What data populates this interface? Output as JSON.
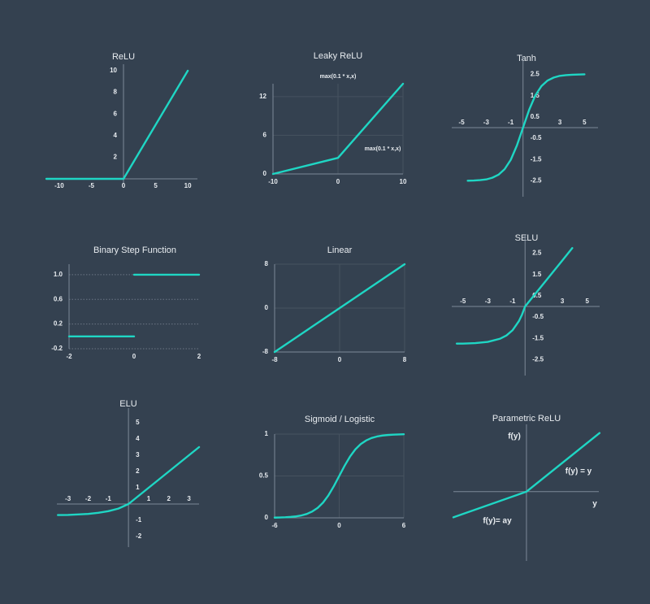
{
  "chart_data": [
    {
      "type": "line",
      "title": "ReLU",
      "color": "#1fd6c4",
      "x": [
        -12,
        0,
        10
      ],
      "values": [
        0,
        0,
        10
      ],
      "xlim": [
        -11.5,
        11.5
      ],
      "ylim": [
        0,
        10
      ],
      "xticks": [
        -10,
        -5,
        0,
        5,
        10
      ],
      "yticks": [
        2,
        4,
        6,
        8,
        10
      ],
      "grid": false
    },
    {
      "type": "line",
      "title": "Leaky ReLU",
      "color": "#1fd6c4",
      "x": [
        -10,
        0,
        10
      ],
      "values": [
        0,
        2.5,
        14
      ],
      "xlim": [
        -10,
        10
      ],
      "ylim": [
        0,
        14
      ],
      "xticks": [
        -10,
        0,
        10
      ],
      "yticks": [
        0,
        6,
        12
      ],
      "grid": true,
      "annotations": [
        "max(0.1 * x,x)",
        "max(0.1 * x,x)"
      ]
    },
    {
      "type": "line",
      "title": "Tanh",
      "color": "#1fd6c4",
      "x": [
        -4.5,
        -4,
        -3.5,
        -3,
        -2.5,
        -2,
        -1.5,
        -1,
        -0.5,
        0,
        0.5,
        1,
        1.5,
        2,
        2.5,
        3,
        3.5,
        4,
        4.5,
        5
      ],
      "values": [
        -2.49,
        -2.48,
        -2.46,
        -2.43,
        -2.35,
        -2.21,
        -1.95,
        -1.51,
        -0.84,
        0,
        0.84,
        1.51,
        1.95,
        2.21,
        2.35,
        2.43,
        2.46,
        2.48,
        2.49,
        2.5
      ],
      "xlim": [
        -5.8,
        6.1
      ],
      "ylim": [
        -3.05,
        3.05
      ],
      "xticks": [
        -5,
        -3,
        -1,
        3,
        5
      ],
      "yticks": [
        2.5,
        1.5,
        0.5,
        -0.5,
        -1.5,
        -2.5
      ],
      "grid": false
    },
    {
      "type": "line",
      "title": "Binary Step Function",
      "color": "#1fd6c4",
      "x": [
        -2,
        0,
        0,
        0,
        2
      ],
      "values": [
        0,
        0,
        null,
        1,
        1
      ],
      "xlim": [
        -2,
        2
      ],
      "ylim": [
        -0.2,
        1.17
      ],
      "xticks": [
        -2,
        0,
        2
      ],
      "yticks": [
        {
          "value": 1,
          "label": "1.0"
        },
        0.6,
        0.2,
        -0.2
      ],
      "grid": "dotted"
    },
    {
      "type": "line",
      "title": "Linear",
      "color": "#1fd6c4",
      "x": [
        -8,
        8
      ],
      "values": [
        -8,
        8
      ],
      "xlim": [
        -8,
        8
      ],
      "ylim": [
        -8,
        8
      ],
      "xticks": [
        -8,
        0,
        8
      ],
      "yticks": [
        -8,
        0,
        8
      ],
      "grid": true
    },
    {
      "type": "line",
      "title": "SELU",
      "color": "#1fd6c4",
      "x": [
        -5.5,
        -5,
        -4,
        -3,
        -2,
        -1.5,
        -1,
        -0.5,
        -0.25,
        0,
        1,
        2,
        3,
        3.8
      ],
      "values": [
        -1.74,
        -1.74,
        -1.72,
        -1.66,
        -1.51,
        -1.36,
        -1.11,
        -0.69,
        -0.39,
        0,
        0.72,
        1.44,
        2.16,
        2.74
      ],
      "xlim": [
        -5.9,
        6
      ],
      "ylim": [
        -3.05,
        3.05
      ],
      "xticks": [
        -5,
        -3,
        -1,
        3,
        5
      ],
      "yticks": [
        2.5,
        1.5,
        0.5,
        -0.5,
        -1.5,
        -2.5
      ],
      "grid": false
    },
    {
      "type": "line",
      "title": "ELU",
      "color": "#1fd6c4",
      "x": [
        -3.5,
        -3,
        -2,
        -1.5,
        -1,
        -0.5,
        0,
        1,
        2,
        3,
        3.5
      ],
      "values": [
        -0.68,
        -0.67,
        -0.61,
        -0.54,
        -0.44,
        -0.28,
        0,
        1,
        2,
        3,
        3.5
      ],
      "xlim": [
        -3.55,
        3.5
      ],
      "ylim": [
        -2.4,
        5.5
      ],
      "xticks": [
        -3,
        -2,
        -1,
        1,
        2,
        3
      ],
      "yticks": [
        5,
        4,
        3,
        2,
        1,
        -1,
        -2
      ],
      "grid": false
    },
    {
      "type": "line",
      "title": "Sigmoid / Logistic",
      "color": "#1fd6c4",
      "x": [
        -6,
        -5.5,
        -5,
        -4.5,
        -4,
        -3.5,
        -3,
        -2.5,
        -2,
        -1.5,
        -1,
        -0.5,
        0,
        0.5,
        1,
        1.5,
        2,
        2.5,
        3,
        3.5,
        4,
        4.5,
        5,
        5.5,
        6
      ],
      "values": [
        0.0025,
        0.0041,
        0.0067,
        0.011,
        0.018,
        0.029,
        0.047,
        0.076,
        0.119,
        0.182,
        0.269,
        0.378,
        0.5,
        0.622,
        0.731,
        0.818,
        0.881,
        0.924,
        0.953,
        0.971,
        0.982,
        0.989,
        0.993,
        0.996,
        0.998
      ],
      "xlim": [
        -6,
        6
      ],
      "ylim": [
        0,
        1
      ],
      "xticks": [
        -6,
        0,
        6
      ],
      "yticks": [
        0,
        0.5,
        1
      ],
      "grid": true
    },
    {
      "type": "line",
      "title": "Parametric ReLU",
      "color": "#1fd6c4",
      "x": [
        -10,
        0,
        10
      ],
      "values": [
        -3.5,
        0,
        8
      ],
      "xlim": [
        -10,
        9.9
      ],
      "ylim": [
        -8.9,
        8.3
      ],
      "xlabel": "y",
      "ylabel": "f(y)",
      "grid": false,
      "annotations": [
        "f(y) = y",
        "f(y)= ay"
      ]
    }
  ]
}
